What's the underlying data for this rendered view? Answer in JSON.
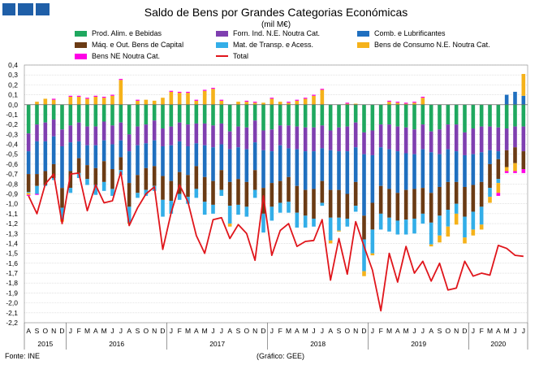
{
  "header": {
    "title": "Saldo de Bens por Grandes Categorias Económicas",
    "unit": "(mil M€)"
  },
  "footer": {
    "source": "Fonte: INE",
    "credit": "(Gráfico: GEE)"
  },
  "colors": {
    "logo": "#1f5fa8",
    "food": "#1fa85f",
    "industrial": "#7f3fb0",
    "fuel": "#1f6fbf",
    "capital": "#6b3b14",
    "transport": "#33aee8",
    "consumer": "#f5b21a",
    "ne": "#ff00e6",
    "total": "#e0151b",
    "grid": "#d0d0d0"
  },
  "chart_data": {
    "type": "bar",
    "title": "Saldo de Bens por Grandes Categorias Económicas",
    "subtitle": "(mil M€)",
    "stacked": true,
    "grid": true,
    "legend_position": "top",
    "ylim": [
      -2.2,
      0.4
    ],
    "yticks": [
      "0,4",
      "0,3",
      "0,2",
      "0,1",
      "0,0",
      "-0,1",
      "-0,2",
      "-0,3",
      "-0,4",
      "-0,5",
      "-0,6",
      "-0,7",
      "-0,8",
      "-0,9",
      "-1,0",
      "-1,1",
      "-1,2",
      "-1,3",
      "-1,4",
      "-1,5",
      "-1,6",
      "-1,7",
      "-1,8",
      "-1,9",
      "-2,0",
      "-2,1",
      "-2,2"
    ],
    "categories": [
      "A",
      "S",
      "O",
      "N",
      "D",
      "J",
      "F",
      "M",
      "A",
      "M",
      "J",
      "J",
      "A",
      "S",
      "O",
      "N",
      "D",
      "J",
      "F",
      "M",
      "A",
      "M",
      "J",
      "J",
      "A",
      "S",
      "O",
      "N",
      "D",
      "J",
      "F",
      "M",
      "A",
      "M",
      "J",
      "J",
      "A",
      "S",
      "O",
      "N",
      "D",
      "J",
      "F",
      "M",
      "A",
      "M",
      "J",
      "J",
      "A",
      "S",
      "O",
      "N",
      "D",
      "J",
      "F",
      "M",
      "A",
      "M",
      "J",
      "J"
    ],
    "years": [
      {
        "label": "2015",
        "start": 0,
        "end": 4
      },
      {
        "label": "2016",
        "start": 5,
        "end": 16
      },
      {
        "label": "2017",
        "start": 17,
        "end": 28
      },
      {
        "label": "2018",
        "start": 29,
        "end": 40
      },
      {
        "label": "2019",
        "start": 41,
        "end": 52
      },
      {
        "label": "2020",
        "start": 53,
        "end": 59
      }
    ],
    "series": [
      {
        "name": "Prod. Alim. e Bebidas",
        "key": "food",
        "values": [
          -0.29,
          -0.2,
          -0.18,
          -0.15,
          -0.25,
          -0.21,
          -0.18,
          -0.22,
          -0.22,
          -0.17,
          -0.21,
          -0.18,
          -0.3,
          -0.22,
          -0.2,
          -0.16,
          -0.24,
          -0.22,
          -0.18,
          -0.2,
          -0.19,
          -0.19,
          -0.21,
          -0.19,
          -0.27,
          -0.22,
          -0.23,
          -0.16,
          -0.26,
          -0.25,
          -0.21,
          -0.21,
          -0.22,
          -0.23,
          -0.23,
          -0.21,
          -0.26,
          -0.23,
          -0.22,
          -0.18,
          -0.28,
          -0.26,
          -0.2,
          -0.2,
          -0.22,
          -0.23,
          -0.25,
          -0.2,
          -0.27,
          -0.25,
          -0.2,
          -0.2,
          -0.28,
          -0.24,
          -0.22,
          -0.22,
          -0.23,
          -0.24,
          -0.22,
          -0.22
        ]
      },
      {
        "name": "Forn. Ind. N.E. Noutra Cat.",
        "key": "industrial",
        "values": [
          -0.18,
          -0.17,
          -0.19,
          -0.17,
          -0.17,
          -0.17,
          -0.19,
          -0.19,
          -0.19,
          -0.19,
          -0.19,
          -0.18,
          -0.17,
          -0.19,
          -0.19,
          -0.2,
          -0.18,
          -0.19,
          -0.19,
          -0.22,
          -0.2,
          -0.22,
          -0.22,
          -0.21,
          -0.18,
          -0.21,
          -0.22,
          -0.22,
          -0.2,
          -0.22,
          -0.2,
          -0.23,
          -0.23,
          -0.24,
          -0.24,
          -0.23,
          -0.2,
          -0.24,
          -0.25,
          -0.25,
          -0.22,
          -0.25,
          -0.23,
          -0.25,
          -0.25,
          -0.26,
          -0.25,
          -0.25,
          -0.21,
          -0.25,
          -0.25,
          -0.27,
          -0.23,
          -0.26,
          -0.26,
          -0.24,
          -0.24,
          -0.22,
          -0.21,
          -0.25
        ]
      },
      {
        "name": "Comb. e Lubrificantes",
        "key": "fuel",
        "values": [
          -0.23,
          -0.33,
          -0.3,
          -0.28,
          -0.42,
          -0.29,
          -0.17,
          -0.2,
          -0.23,
          -0.21,
          -0.25,
          -0.17,
          -0.32,
          -0.3,
          -0.25,
          -0.26,
          -0.3,
          -0.36,
          -0.31,
          -0.29,
          -0.23,
          -0.32,
          -0.34,
          -0.26,
          -0.33,
          -0.32,
          -0.33,
          -0.28,
          -0.38,
          -0.32,
          -0.36,
          -0.29,
          -0.37,
          -0.39,
          -0.38,
          -0.33,
          -0.4,
          -0.39,
          -0.43,
          -0.35,
          -0.62,
          -0.48,
          -0.39,
          -0.4,
          -0.42,
          -0.37,
          -0.35,
          -0.39,
          -0.41,
          -0.33,
          -0.33,
          -0.31,
          -0.32,
          -0.31,
          -0.3,
          -0.14,
          -0.08,
          0.1,
          0.13,
          0.09
        ]
      },
      {
        "name": "Máq. e Out. Bens de Capital",
        "key": "capital",
        "values": [
          -0.18,
          -0.12,
          -0.14,
          -0.14,
          -0.2,
          -0.17,
          -0.15,
          -0.14,
          -0.17,
          -0.21,
          -0.2,
          -0.13,
          -0.24,
          -0.18,
          -0.22,
          -0.2,
          -0.24,
          -0.2,
          -0.22,
          -0.22,
          -0.23,
          -0.25,
          -0.24,
          -0.2,
          -0.24,
          -0.26,
          -0.25,
          -0.2,
          -0.26,
          -0.24,
          -0.22,
          -0.25,
          -0.27,
          -0.26,
          -0.3,
          -0.22,
          -0.28,
          -0.28,
          -0.25,
          -0.24,
          -0.24,
          -0.27,
          -0.28,
          -0.29,
          -0.28,
          -0.3,
          -0.3,
          -0.26,
          -0.3,
          -0.29,
          -0.28,
          -0.22,
          -0.3,
          -0.27,
          -0.25,
          -0.24,
          -0.2,
          -0.17,
          -0.16,
          -0.18
        ]
      },
      {
        "name": "Mat. de Transp. e Acess.",
        "key": "transport",
        "values": [
          -0.01,
          -0.08,
          -0.01,
          -0.02,
          -0.12,
          -0.05,
          -0.05,
          -0.06,
          -0.1,
          -0.09,
          -0.07,
          -0.05,
          -0.16,
          -0.05,
          -0.06,
          -0.05,
          -0.17,
          -0.13,
          -0.06,
          -0.07,
          -0.09,
          -0.13,
          -0.09,
          -0.06,
          -0.18,
          -0.1,
          -0.1,
          -0.08,
          -0.19,
          -0.14,
          -0.1,
          -0.11,
          -0.15,
          -0.12,
          -0.08,
          -0.03,
          -0.23,
          -0.13,
          -0.08,
          -0.06,
          -0.32,
          -0.24,
          -0.16,
          -0.14,
          -0.14,
          -0.15,
          -0.15,
          -0.1,
          -0.22,
          -0.2,
          -0.17,
          -0.1,
          -0.21,
          -0.18,
          -0.18,
          -0.09,
          -0.04,
          0.0,
          0.0,
          0.0
        ]
      },
      {
        "name": "Bens de Consumo N.E. Noutra Cat.",
        "key": "consumer",
        "values": [
          -0.02,
          0.03,
          0.06,
          0.05,
          -0.02,
          0.08,
          0.08,
          0.06,
          0.08,
          0.07,
          0.09,
          0.25,
          -0.01,
          0.04,
          0.05,
          0.04,
          0.07,
          0.13,
          0.12,
          0.12,
          0.04,
          0.14,
          0.16,
          0.04,
          -0.03,
          0.03,
          0.03,
          0.02,
          0.02,
          0.06,
          0.03,
          0.02,
          0.04,
          0.06,
          0.09,
          0.15,
          -0.03,
          -0.01,
          0.01,
          0.01,
          -0.05,
          -0.02,
          0.0,
          0.03,
          0.02,
          0.01,
          0.02,
          0.07,
          -0.02,
          -0.07,
          -0.1,
          -0.11,
          -0.06,
          -0.06,
          -0.05,
          -0.06,
          -0.1,
          -0.04,
          -0.08,
          0.22
        ]
      },
      {
        "name": "Bens NE Noutra Cat.",
        "key": "ne",
        "values": [
          -0.01,
          -0.01,
          0.0,
          0.01,
          0.0,
          0.01,
          0.01,
          0.01,
          0.01,
          0.01,
          0.01,
          0.01,
          0.0,
          0.01,
          0.0,
          0.0,
          0.0,
          0.01,
          0.01,
          0.01,
          0.01,
          0.01,
          0.01,
          0.01,
          0.0,
          0.0,
          0.01,
          0.01,
          0.0,
          0.01,
          0.0,
          0.01,
          0.01,
          0.01,
          0.01,
          0.01,
          0.0,
          0.0,
          0.01,
          0.0,
          0.0,
          0.0,
          0.0,
          0.01,
          0.01,
          0.01,
          0.01,
          0.01,
          0.0,
          0.0,
          0.0,
          0.0,
          0.0,
          0.0,
          0.0,
          0.0,
          -0.03,
          -0.02,
          -0.02,
          -0.04
        ]
      },
      {
        "name": "Total",
        "key": "total",
        "type": "line",
        "values": [
          -0.92,
          -1.1,
          -0.8,
          -0.7,
          -1.2,
          -0.7,
          -0.69,
          -1.07,
          -0.81,
          -0.99,
          -0.97,
          -0.68,
          -1.22,
          -1.04,
          -0.9,
          -0.83,
          -1.46,
          -1.09,
          -0.81,
          -0.98,
          -1.32,
          -1.5,
          -1.16,
          -1.14,
          -1.35,
          -1.21,
          -1.3,
          -1.57,
          -0.92,
          -1.52,
          -1.27,
          -1.2,
          -1.43,
          -1.38,
          -1.37,
          -1.16,
          -1.77,
          -1.35,
          -1.71,
          -1.18,
          -1.43,
          -1.67,
          -2.08,
          -1.5,
          -1.79,
          -1.43,
          -1.7,
          -1.58,
          -1.78,
          -1.6,
          -1.87,
          -1.85,
          -1.58,
          -1.73,
          -1.7,
          -1.72,
          -1.42,
          -1.45,
          -1.52,
          -1.53
        ]
      }
    ]
  },
  "legend": [
    {
      "label": "Prod. Alim. e Bebidas",
      "key": "food"
    },
    {
      "label": "Forn. Ind. N.E. Noutra Cat.",
      "key": "industrial"
    },
    {
      "label": "Comb. e Lubrificantes",
      "key": "fuel"
    },
    {
      "label": "Máq. e Out. Bens de Capital",
      "key": "capital"
    },
    {
      "label": "Mat. de Transp. e Acess.",
      "key": "transport"
    },
    {
      "label": "Bens de Consumo N.E. Noutra Cat.",
      "key": "consumer"
    },
    {
      "label": "Bens NE Noutra Cat.",
      "key": "ne"
    },
    {
      "label": "Total",
      "key": "total"
    }
  ]
}
